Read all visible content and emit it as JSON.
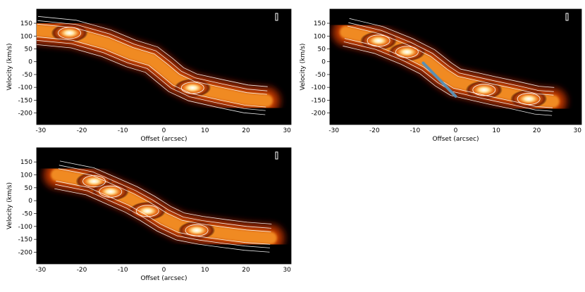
{
  "chart_data": [
    {
      "type": "heatmap",
      "panel": "top-left",
      "xlabel": "Offset (arcsec)",
      "ylabel": "Velocity (km/s)",
      "xlim": [
        -31,
        31
      ],
      "ylim": [
        -245,
        205
      ],
      "xticks": [
        -30,
        -20,
        -10,
        0,
        10,
        20,
        30
      ],
      "yticks": [
        150,
        100,
        50,
        0,
        -50,
        -100,
        -150,
        -200
      ],
      "trace": [
        [
          -31,
          122
        ],
        [
          -22,
          108
        ],
        [
          -14,
          72
        ],
        [
          -8,
          32
        ],
        [
          -3,
          8
        ],
        [
          0,
          -30
        ],
        [
          3,
          -70
        ],
        [
          7,
          -100
        ],
        [
          14,
          -125
        ],
        [
          20,
          -145
        ],
        [
          25,
          -152
        ]
      ],
      "peaks": [
        [
          -23,
          112
        ],
        [
          7,
          -102
        ]
      ]
    },
    {
      "type": "heatmap",
      "panel": "top-right",
      "xlabel": "Offset (arcsec)",
      "ylabel": "Velocity (km/s)",
      "xlim": [
        -31,
        31
      ],
      "ylim": [
        -245,
        205
      ],
      "xticks": [
        -30,
        -20,
        -10,
        0,
        10,
        20,
        30
      ],
      "yticks": [
        150,
        100,
        50,
        0,
        -50,
        -100,
        -150,
        -200
      ],
      "trace": [
        [
          -27,
          115
        ],
        [
          -19,
          85
        ],
        [
          -12,
          40
        ],
        [
          -7,
          0
        ],
        [
          -3,
          -50
        ],
        [
          0,
          -80
        ],
        [
          5,
          -98
        ],
        [
          9,
          -112
        ],
        [
          15,
          -132
        ],
        [
          20,
          -150
        ],
        [
          24,
          -155
        ]
      ],
      "peaks": [
        [
          -19,
          82
        ],
        [
          -12,
          38
        ],
        [
          7,
          -110
        ],
        [
          18,
          -145
        ]
      ],
      "overlay_line": [
        [
          -8,
          -5
        ],
        [
          0,
          -135
        ]
      ]
    },
    {
      "type": "heatmap",
      "panel": "bottom-left",
      "xlabel": "Offset (arcsec)",
      "ylabel": "Velocity (km/s)",
      "xlim": [
        -31,
        31
      ],
      "ylim": [
        -245,
        205
      ],
      "xticks": [
        -30,
        -20,
        -10,
        0,
        10,
        20,
        30
      ],
      "yticks": [
        150,
        100,
        50,
        0,
        -50,
        -100,
        -150,
        -200
      ],
      "trace": [
        [
          -26,
          100
        ],
        [
          -18,
          75
        ],
        [
          -13,
          40
        ],
        [
          -8,
          5
        ],
        [
          -4,
          -30
        ],
        [
          0,
          -70
        ],
        [
          4,
          -100
        ],
        [
          9,
          -115
        ],
        [
          15,
          -128
        ],
        [
          20,
          -138
        ],
        [
          26,
          -145
        ]
      ],
      "peaks": [
        [
          -17,
          75
        ],
        [
          -13,
          35
        ],
        [
          -4,
          -40
        ],
        [
          8,
          -115
        ]
      ]
    }
  ]
}
